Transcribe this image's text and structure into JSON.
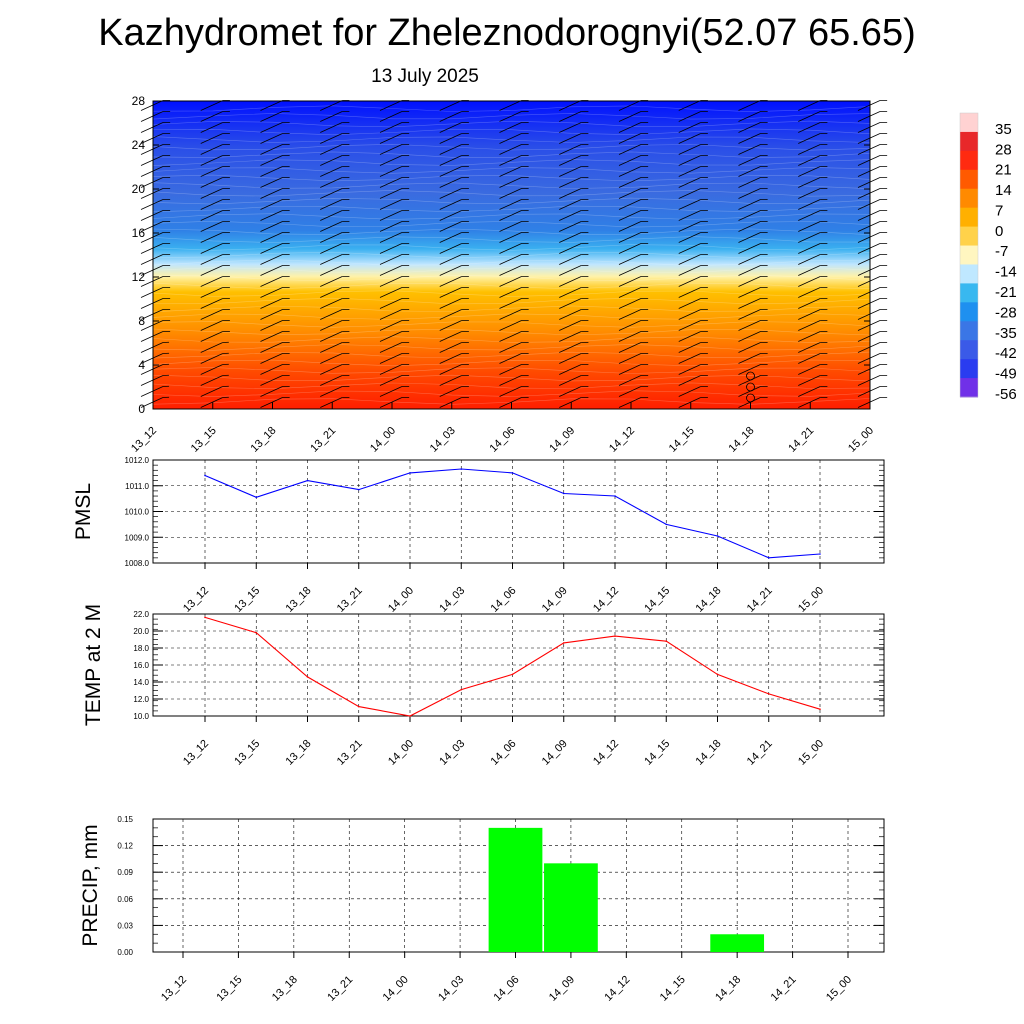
{
  "header": {
    "title": "Kazhydromet for Zheleznodorognyi(52.07 65.65)",
    "subtitle": "13 July 2025"
  },
  "colors": {
    "pmsl_line": "#0000ff",
    "temp_line": "#ff0000",
    "precip_bar": "#00ff00",
    "grid": "#000000"
  },
  "chart_data": [
    {
      "id": "cross_section",
      "type": "heatmap",
      "title": "",
      "xlabel": "",
      "ylabel": "",
      "x": [
        "13_12",
        "13_15",
        "13_18",
        "13_21",
        "14_00",
        "14_03",
        "14_06",
        "14_09",
        "14_12",
        "14_15",
        "14_18",
        "14_21",
        "15_00"
      ],
      "y_ticks": [
        0,
        4,
        8,
        12,
        16,
        20,
        24,
        28
      ],
      "ylim": [
        0,
        28
      ],
      "description_of_field": "temperature shaded by level, wind barbs overlaid",
      "colorbar": {
        "labels": [
          "35",
          "28",
          "21",
          "14",
          "7",
          "0",
          "-7",
          "-14",
          "-21",
          "-28",
          "-35",
          "-42",
          "-49",
          "-56"
        ]
      }
    },
    {
      "id": "pmsl",
      "type": "line",
      "title": "",
      "ylabel": "PMSL",
      "x": [
        "13_12",
        "13_15",
        "13_18",
        "13_21",
        "14_00",
        "14_03",
        "14_06",
        "14_09",
        "14_12",
        "14_15",
        "14_18",
        "14_21",
        "15_00"
      ],
      "y_ticks": [
        "1008.0",
        "1009.0",
        "1010.0",
        "1011.0",
        "1012.0"
      ],
      "ylim": [
        1008.0,
        1012.0
      ],
      "series": [
        {
          "values": [
            1011.4,
            1010.55,
            1011.2,
            1010.85,
            1011.5,
            1011.65,
            1011.5,
            1010.7,
            1010.6,
            1009.5,
            1009.05,
            1008.2,
            1008.35
          ]
        }
      ]
    },
    {
      "id": "temp",
      "type": "line",
      "title": "",
      "ylabel": "TEMP at 2 M",
      "x": [
        "13_12",
        "13_15",
        "13_18",
        "13_21",
        "14_00",
        "14_03",
        "14_06",
        "14_09",
        "14_12",
        "14_15",
        "14_18",
        "14_21",
        "15_00"
      ],
      "y_ticks": [
        "10.0",
        "12.0",
        "14.0",
        "16.0",
        "18.0",
        "20.0",
        "22.0"
      ],
      "ylim": [
        10.0,
        22.0
      ],
      "series": [
        {
          "values": [
            21.6,
            19.8,
            14.6,
            11.1,
            10.0,
            13.1,
            14.9,
            18.6,
            19.4,
            18.8,
            14.9,
            12.6,
            10.8
          ]
        }
      ]
    },
    {
      "id": "precip",
      "type": "bar",
      "title": "",
      "ylabel": "PRECIP, mm",
      "categories": [
        "13_12",
        "13_15",
        "13_18",
        "13_21",
        "14_00",
        "14_03",
        "14_06",
        "14_09",
        "14_12",
        "14_15",
        "14_18",
        "14_21",
        "15_00"
      ],
      "y_ticks": [
        "0.00",
        "0.03",
        "0.06",
        "0.09",
        "0.12",
        "0.15"
      ],
      "ylim": [
        0,
        0.15
      ],
      "series": [
        {
          "values": [
            0,
            0,
            0,
            0,
            0,
            0,
            0.14,
            0.1,
            0,
            0,
            0.02,
            0,
            0
          ]
        }
      ]
    }
  ]
}
